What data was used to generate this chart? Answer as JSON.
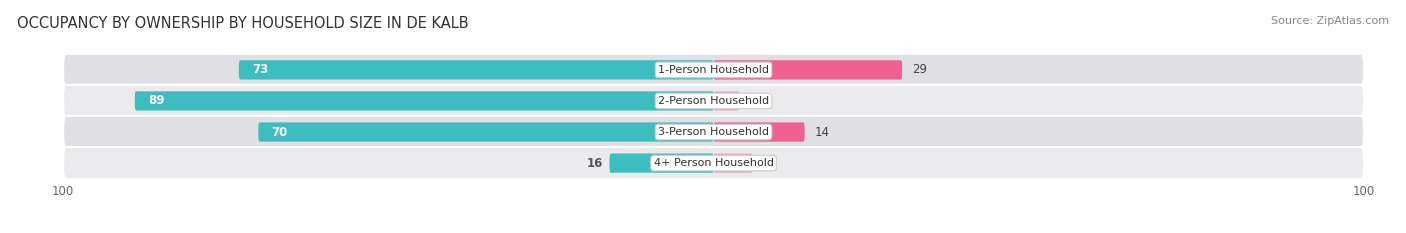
{
  "title": "OCCUPANCY BY OWNERSHIP BY HOUSEHOLD SIZE IN DE KALB",
  "source": "Source: ZipAtlas.com",
  "categories": [
    "1-Person Household",
    "2-Person Household",
    "3-Person Household",
    "4+ Person Household"
  ],
  "owner_values": [
    73,
    89,
    70,
    16
  ],
  "renter_values": [
    29,
    4,
    14,
    6
  ],
  "owner_color": "#3DBDC0",
  "renter_color_bright": "#F06090",
  "renter_color_light": "#F4A8C0",
  "row_bg_color_dark": "#E0E0E4",
  "row_bg_color_light": "#EBEBEE",
  "axis_max": 100,
  "title_fontsize": 10.5,
  "source_fontsize": 8,
  "value_fontsize": 8.5,
  "cat_fontsize": 8,
  "tick_fontsize": 8.5,
  "legend_fontsize": 8.5,
  "fig_width": 14.06,
  "fig_height": 2.33,
  "dpi": 100
}
